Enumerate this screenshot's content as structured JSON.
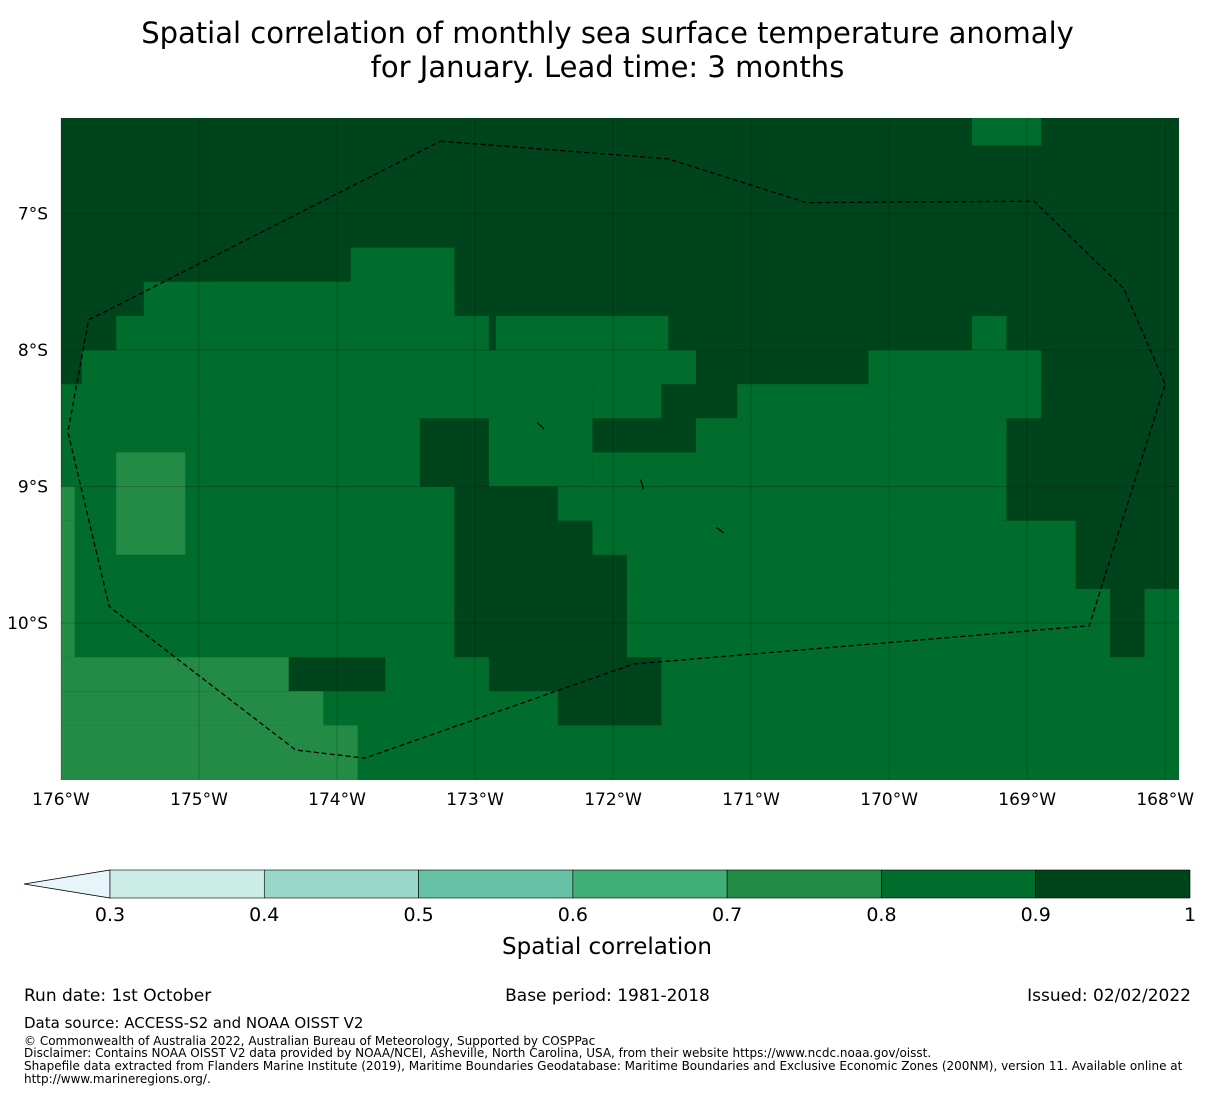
{
  "title_line1": "Spatial correlation of monthly sea surface temperature anomaly",
  "title_line2": "for January. Lead time: 3 months",
  "map": {
    "lon_range": [
      -176,
      -167.9
    ],
    "lat_range": [
      -11.15,
      -6.3
    ],
    "x_ticks": [
      {
        "lon": -176,
        "label": "176°W"
      },
      {
        "lon": -175,
        "label": "175°W"
      },
      {
        "lon": -174,
        "label": "174°W"
      },
      {
        "lon": -173,
        "label": "173°W"
      },
      {
        "lon": -172,
        "label": "172°W"
      },
      {
        "lon": -171,
        "label": "171°W"
      },
      {
        "lon": -170,
        "label": "170°W"
      },
      {
        "lon": -169,
        "label": "169°W"
      },
      {
        "lon": -168,
        "label": "168°W"
      }
    ],
    "y_ticks": [
      {
        "lat": -7,
        "label": "7°S"
      },
      {
        "lat": -8,
        "label": "8°S"
      },
      {
        "lat": -9,
        "label": "9°S"
      },
      {
        "lat": -10,
        "label": "10°S"
      }
    ],
    "eez_boundary": [
      [
        -173.25,
        -6.47
      ],
      [
        -171.6,
        -6.6
      ],
      [
        -170.6,
        -6.92
      ],
      [
        -168.95,
        -6.91
      ],
      [
        -168.3,
        -7.55
      ],
      [
        -168.0,
        -8.25
      ],
      [
        -168.55,
        -10.02
      ],
      [
        -171.85,
        -10.3
      ],
      [
        -173.8,
        -10.99
      ],
      [
        -174.3,
        -10.93
      ],
      [
        -175.65,
        -9.88
      ],
      [
        -175.95,
        -8.6
      ],
      [
        -175.8,
        -7.78
      ],
      [
        -173.25,
        -6.47
      ]
    ],
    "islands": [
      [
        [
          -172.55,
          -8.53
        ],
        [
          -172.5,
          -8.58
        ]
      ],
      [
        [
          -171.8,
          -8.95
        ],
        [
          -171.78,
          -9.02
        ]
      ],
      [
        [
          -171.25,
          -9.3
        ],
        [
          -171.2,
          -9.34
        ]
      ]
    ],
    "cells": [
      {
        "lon0": -176.0,
        "lon1": -167.9,
        "lat0": -11.15,
        "lat1": -6.3,
        "bin": 6
      },
      {
        "lon0": -169.4,
        "lon1": -168.9,
        "lat0": -6.5,
        "lat1": -6.3,
        "bin": 5
      },
      {
        "lon0": -173.9,
        "lon1": -173.15,
        "lat0": -7.5,
        "lat1": -7.25,
        "bin": 5
      },
      {
        "lon0": -174.9,
        "lon1": -173.15,
        "lat0": -7.75,
        "lat1": -7.5,
        "bin": 5
      },
      {
        "lon0": -175.4,
        "lon1": -172.9,
        "lat0": -8.0,
        "lat1": -7.75,
        "bin": 5
      },
      {
        "lon0": -175.4,
        "lon1": -173.15,
        "lat0": -8.0,
        "lat1": -7.5,
        "bin": 5
      },
      {
        "lon0": -175.6,
        "lon1": -173.15,
        "lat0": -8.0,
        "lat1": -7.75,
        "bin": 5
      },
      {
        "lon0": -172.85,
        "lon1": -171.6,
        "lat0": -8.0,
        "lat1": -7.75,
        "bin": 5
      },
      {
        "lon0": -169.4,
        "lon1": -169.15,
        "lat0": -8.0,
        "lat1": -7.75,
        "bin": 5
      },
      {
        "lon0": -175.85,
        "lon1": -171.4,
        "lat0": -8.25,
        "lat1": -8.0,
        "bin": 5
      },
      {
        "lon0": -170.15,
        "lon1": -168.9,
        "lat0": -8.25,
        "lat1": -8.0,
        "bin": 5
      },
      {
        "lon0": -176.0,
        "lon1": -172.15,
        "lat0": -8.5,
        "lat1": -8.25,
        "bin": 5
      },
      {
        "lon0": -172.15,
        "lon1": -171.65,
        "lat0": -8.5,
        "lat1": -8.25,
        "bin": 5
      },
      {
        "lon0": -171.1,
        "lon1": -168.9,
        "lat0": -8.5,
        "lat1": -8.25,
        "bin": 5
      },
      {
        "lon0": -176.0,
        "lon1": -173.4,
        "lat0": -9.0,
        "lat1": -8.5,
        "bin": 5
      },
      {
        "lon0": -172.9,
        "lon1": -172.15,
        "lat0": -9.0,
        "lat1": -8.5,
        "bin": 5
      },
      {
        "lon0": -171.4,
        "lon1": -169.15,
        "lat0": -9.0,
        "lat1": -8.5,
        "bin": 5
      },
      {
        "lon0": -172.15,
        "lon1": -171.4,
        "lat0": -9.0,
        "lat1": -8.75,
        "bin": 5
      },
      {
        "lon0": -175.9,
        "lon1": -173.15,
        "lat0": -10.25,
        "lat1": -9.0,
        "bin": 5
      },
      {
        "lon0": -172.4,
        "lon1": -169.15,
        "lat0": -9.25,
        "lat1": -9.0,
        "bin": 5
      },
      {
        "lon0": -172.15,
        "lon1": -168.65,
        "lat0": -9.5,
        "lat1": -9.25,
        "bin": 5
      },
      {
        "lon0": -171.9,
        "lon1": -168.65,
        "lat0": -9.75,
        "lat1": -9.5,
        "bin": 5
      },
      {
        "lon0": -171.9,
        "lon1": -168.4,
        "lat0": -10.0,
        "lat1": -9.75,
        "bin": 5
      },
      {
        "lon0": -171.9,
        "lon1": -168.4,
        "lat0": -10.25,
        "lat1": -10.0,
        "bin": 5
      },
      {
        "lon0": -168.15,
        "lon1": -167.9,
        "lat0": -10.25,
        "lat1": -9.75,
        "bin": 5
      },
      {
        "lon0": -171.65,
        "lon1": -167.9,
        "lat0": -11.15,
        "lat1": -10.25,
        "bin": 5
      },
      {
        "lon0": -173.65,
        "lon1": -172.9,
        "lat0": -10.5,
        "lat1": -10.25,
        "bin": 5
      },
      {
        "lon0": -174.35,
        "lon1": -172.4,
        "lat0": -10.75,
        "lat1": -10.5,
        "bin": 5
      },
      {
        "lon0": -174.1,
        "lon1": -172.4,
        "lat0": -11.0,
        "lat1": -10.75,
        "bin": 5
      },
      {
        "lon0": -173.85,
        "lon1": -171.65,
        "lat0": -11.15,
        "lat1": -10.75,
        "bin": 5
      },
      {
        "lon0": -172.4,
        "lon1": -171.9,
        "lat0": -11.15,
        "lat1": -11.0,
        "bin": 5
      },
      {
        "lon0": -176.0,
        "lon1": -175.9,
        "lat0": -9.25,
        "lat1": -9.0,
        "bin": 4
      },
      {
        "lon0": -175.6,
        "lon1": -175.1,
        "lat0": -9.5,
        "lat1": -8.75,
        "bin": 4
      },
      {
        "lon0": -176.0,
        "lon1": -175.9,
        "lat0": -10.25,
        "lat1": -9.25,
        "bin": 4
      },
      {
        "lon0": -176.0,
        "lon1": -174.35,
        "lat0": -10.5,
        "lat1": -10.25,
        "bin": 4
      },
      {
        "lon0": -176.0,
        "lon1": -174.1,
        "lat0": -10.75,
        "lat1": -10.5,
        "bin": 4
      },
      {
        "lon0": -176.0,
        "lon1": -173.85,
        "lat0": -11.15,
        "lat1": -10.75,
        "bin": 4
      }
    ]
  },
  "colorbar": {
    "ticks": [
      "0.3",
      "0.4",
      "0.5",
      "0.6",
      "0.7",
      "0.8",
      "0.9",
      "1"
    ],
    "colors": [
      "#ccece6",
      "#99d8c9",
      "#66c2a4",
      "#41ae76",
      "#238b45",
      "#006d2c",
      "#00441b"
    ],
    "extend_color": "#e5f5f9",
    "label": "Spatial correlation"
  },
  "footer": {
    "run_date": "Run date: 1st October",
    "base_period": "Base period: 1981-2018",
    "issued": "Issued: 02/02/2022",
    "data_source": "Data source: ACCESS-S2 and NOAA OISST V2",
    "copyright": "© Commonwealth of Australia 2022, Australian Bureau of Meteorology, Supported by COSPPac",
    "disclaimer": "Disclaimer: Contains NOAA OISST V2 data provided by NOAA/NCEI, Asheville, North Carolina, USA, from their website https://www.ncdc.noaa.gov/oisst.",
    "shapefile_1": "Shapefile data extracted from Flanders Marine Institute (2019), Maritime Boundaries Geodatabase: Maritime Boundaries and Exclusive Economic Zones (200NM), version 11. Available online at",
    "shapefile_2": "http://www.marineregions.org/."
  }
}
